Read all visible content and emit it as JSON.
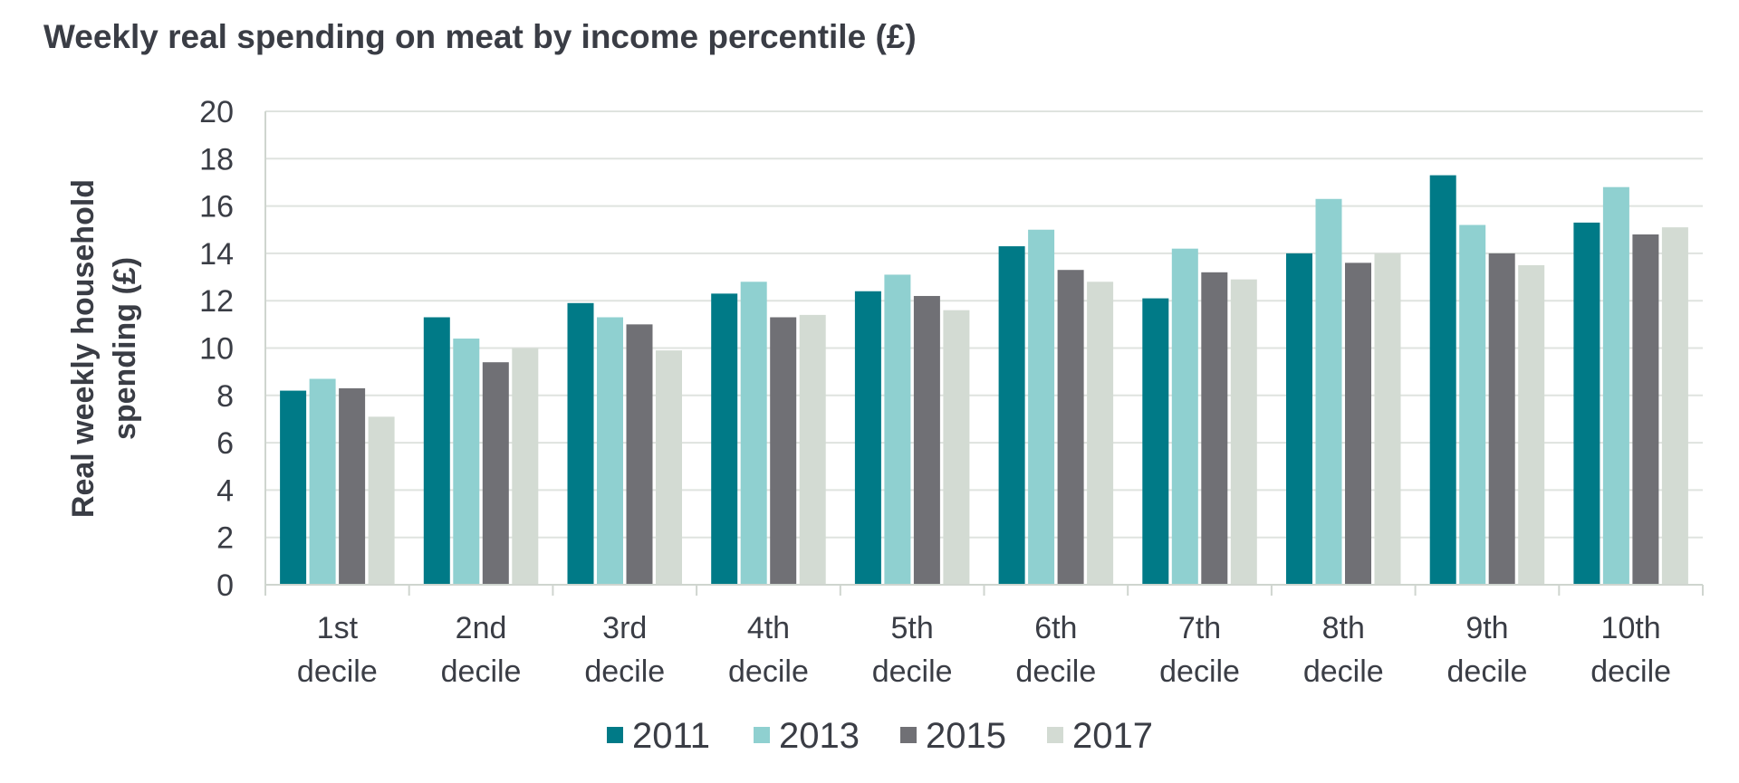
{
  "chart_data": {
    "type": "bar",
    "title": "Weekly real spending on meat by income percentile (£)",
    "ylabel": [
      "Real weekly household",
      "spending (£)"
    ],
    "xlabel": "",
    "ylim": [
      0,
      20
    ],
    "yticks": [
      0,
      2,
      4,
      6,
      8,
      10,
      12,
      14,
      16,
      18,
      20
    ],
    "grid": true,
    "legend": "bottom",
    "categories": [
      [
        "1st",
        "decile"
      ],
      [
        "2nd",
        "decile"
      ],
      [
        "3rd",
        "decile"
      ],
      [
        "4th",
        "decile"
      ],
      [
        "5th",
        "decile"
      ],
      [
        "6th",
        "decile"
      ],
      [
        "7th",
        "decile"
      ],
      [
        "8th",
        "decile"
      ],
      [
        "9th",
        "decile"
      ],
      [
        "10th",
        "decile"
      ]
    ],
    "series": [
      {
        "name": "2011",
        "color": "#007a87",
        "values": [
          8.2,
          11.3,
          11.9,
          12.3,
          12.4,
          14.3,
          12.1,
          14.0,
          17.3,
          15.3
        ]
      },
      {
        "name": "2013",
        "color": "#8fd0d0",
        "values": [
          8.7,
          10.4,
          11.3,
          12.8,
          13.1,
          15.0,
          14.2,
          16.3,
          15.2,
          16.8
        ]
      },
      {
        "name": "2015",
        "color": "#707075",
        "values": [
          8.3,
          9.4,
          11.0,
          11.3,
          12.2,
          13.3,
          13.2,
          13.6,
          14.0,
          14.8
        ]
      },
      {
        "name": "2017",
        "color": "#d3dbd3",
        "values": [
          7.1,
          10.0,
          9.9,
          11.4,
          11.6,
          12.8,
          12.9,
          14.0,
          13.5,
          15.1
        ]
      }
    ]
  }
}
